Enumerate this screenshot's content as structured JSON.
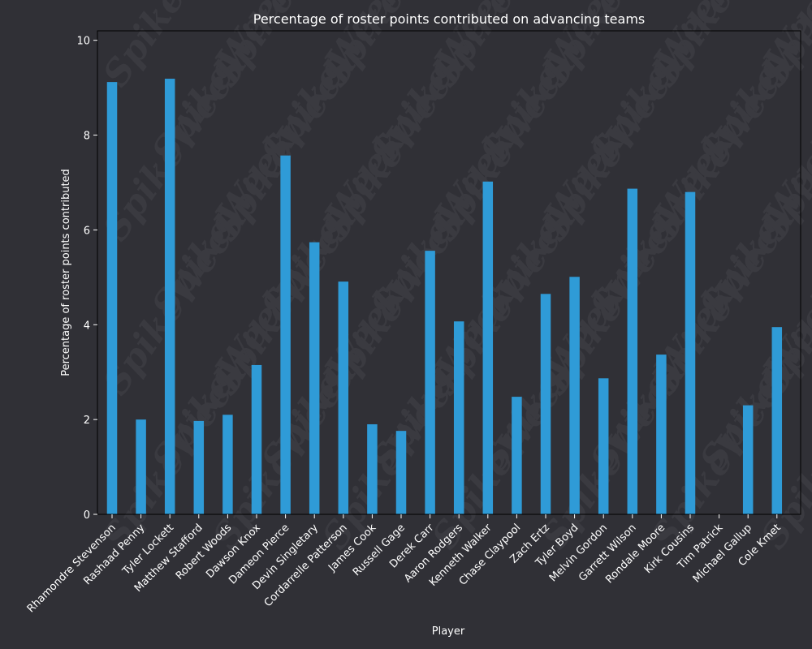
{
  "chart_data": {
    "type": "bar",
    "title": "Percentage of roster points contributed on advancing teams",
    "xlabel": "Player",
    "ylabel": "Percentage of roster points contributed",
    "ylim": [
      0,
      10.2
    ],
    "yticks": [
      0,
      2,
      4,
      6,
      8,
      10
    ],
    "grid": false,
    "watermark": "SpikeWeek",
    "colors": {
      "background": "#303036",
      "bar": "#2f9bd7",
      "text": "#ffffff",
      "axis": "#000000"
    },
    "categories": [
      "Rhamondre Stevenson",
      "Rashaad Penny",
      "Tyler Lockett",
      "Matthew Stafford",
      "Robert Woods",
      "Dawson Knox",
      "Dameon Pierce",
      "Devin Singletary",
      "Cordarrelle Patterson",
      "James Cook",
      "Russell Gage",
      "Derek Carr",
      "Aaron Rodgers",
      "Kenneth Walker",
      "Chase Claypool",
      "Zach Ertz",
      "Tyler Boyd",
      "Melvin Gordon",
      "Garrett Wilson",
      "Rondale Moore",
      "Kirk Cousins",
      "Tim Patrick",
      "Michael Gallup",
      "Cole Kmet"
    ],
    "values": [
      9.12,
      2.0,
      9.19,
      1.97,
      2.1,
      3.15,
      7.57,
      5.74,
      4.91,
      1.9,
      1.76,
      5.56,
      4.07,
      7.02,
      2.48,
      4.65,
      5.01,
      2.87,
      6.87,
      3.37,
      6.8,
      0.0,
      2.3,
      3.95
    ]
  }
}
